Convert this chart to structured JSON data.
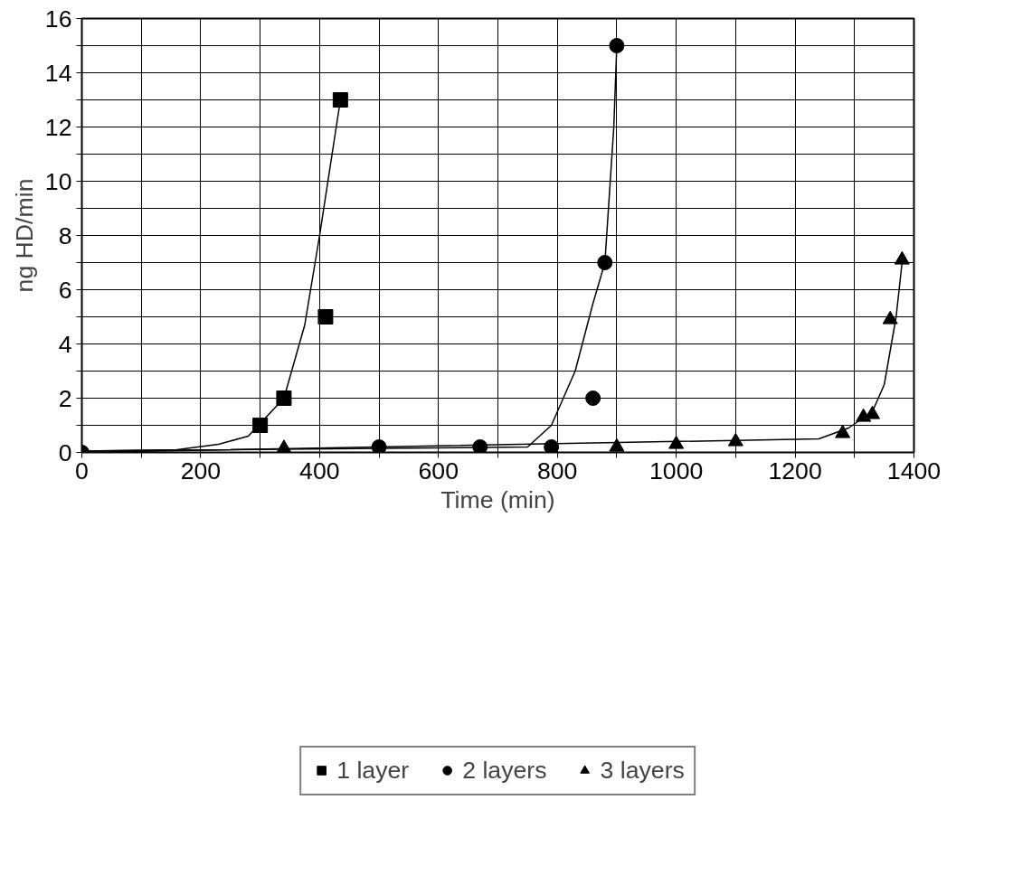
{
  "chart_data": {
    "type": "scatter",
    "xlabel": "Time (min)",
    "ylabel": "ng HD/min",
    "xlim": [
      0,
      1400
    ],
    "ylim": [
      0,
      16
    ],
    "xticks": [
      0,
      {
        "value": 100,
        "label": null
      },
      200,
      {
        "value": 300,
        "label": null
      },
      400,
      {
        "value": 500,
        "label": null
      },
      600,
      {
        "value": 700,
        "label": null
      },
      800,
      {
        "value": 900,
        "label": null
      },
      1000,
      {
        "value": 1100,
        "label": null
      },
      1200,
      {
        "value": 1300,
        "label": null
      },
      1400
    ],
    "yticks": [
      0,
      {
        "value": 1,
        "label": null
      },
      2,
      {
        "value": 3,
        "label": null
      },
      4,
      {
        "value": 5,
        "label": null
      },
      6,
      {
        "value": 7,
        "label": null
      },
      8,
      {
        "value": 9,
        "label": null
      },
      10,
      {
        "value": 11,
        "label": null
      },
      12,
      {
        "value": 13,
        "label": null
      },
      14,
      {
        "value": 15,
        "label": null
      },
      16
    ],
    "grid": true,
    "legend": "bottom",
    "series": [
      {
        "name": "1 layer",
        "marker": "square",
        "color": "#000000",
        "x": [
          300,
          340,
          410,
          435
        ],
        "values": [
          1,
          2,
          5,
          13
        ]
      },
      {
        "name": "2 layers",
        "marker": "circle",
        "color": "#000000",
        "x": [
          0,
          500,
          670,
          790,
          860,
          880,
          900
        ],
        "values": [
          0,
          0.2,
          0.2,
          0.2,
          2,
          7,
          15
        ]
      },
      {
        "name": "3 layers",
        "marker": "triangle",
        "color": "#000000",
        "x": [
          340,
          900,
          1000,
          1100,
          1280,
          1315,
          1330,
          1360,
          1380
        ],
        "values": [
          0.15,
          0.2,
          0.3,
          0.4,
          0.7,
          1.3,
          1.4,
          4.9,
          7.1
        ]
      },
      {
        "type": "line",
        "line_style": "solid",
        "color": "#000000",
        "x": [
          0,
          160,
          230,
          280,
          340,
          375,
          400,
          435
        ],
        "values": [
          0.05,
          0.1,
          0.3,
          0.6,
          2,
          4.7,
          8,
          13
        ]
      },
      {
        "type": "line",
        "line_style": "solid",
        "color": "#000000",
        "x": [
          0,
          750,
          790,
          830,
          860,
          880,
          895,
          900
        ],
        "values": [
          0.05,
          0.2,
          1,
          3,
          5.5,
          7,
          12,
          15
        ]
      },
      {
        "type": "line",
        "line_style": "solid",
        "color": "#000000",
        "x": [
          0,
          1240,
          1290,
          1330,
          1350,
          1370,
          1380
        ],
        "values": [
          0,
          0.5,
          0.9,
          1.5,
          2.5,
          5,
          7
        ]
      }
    ]
  }
}
